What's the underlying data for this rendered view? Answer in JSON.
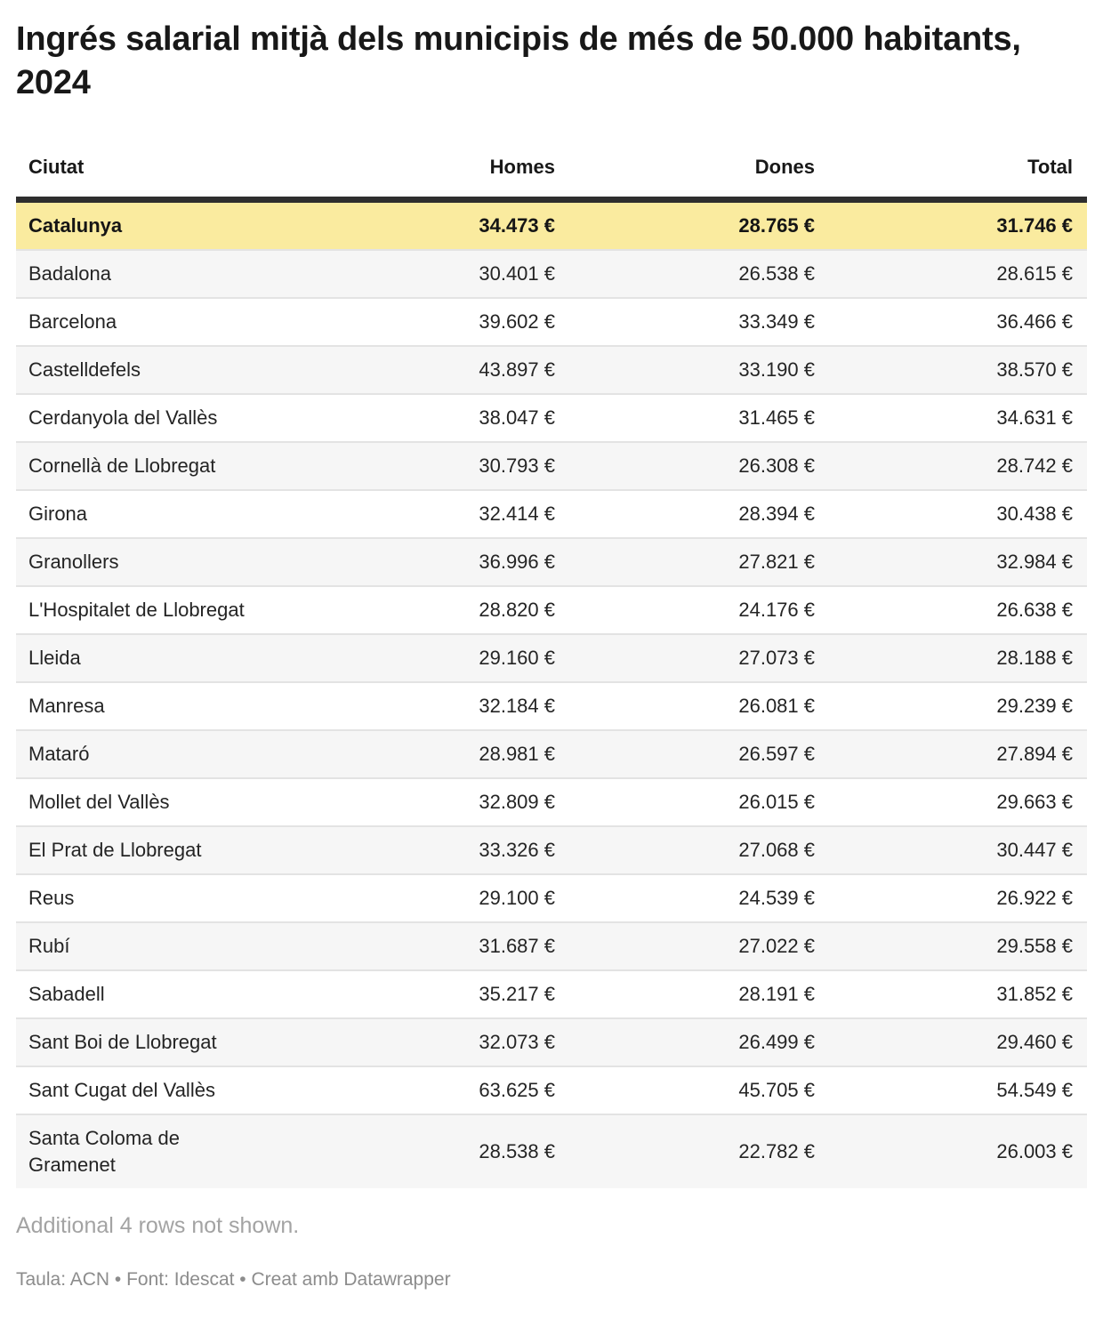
{
  "chart_data": {
    "type": "table",
    "title": "Ingrés salarial mitjà dels municipis de més de 50.000 habitants, 2024",
    "columns": [
      "Ciutat",
      "Homes",
      "Dones",
      "Total"
    ],
    "unit": "€",
    "highlighted_row": "Catalunya",
    "rows": [
      [
        "Catalunya",
        "34.473 €",
        "28.765 €",
        "31.746 €"
      ],
      [
        "Badalona",
        "30.401 €",
        "26.538 €",
        "28.615 €"
      ],
      [
        "Barcelona",
        "39.602 €",
        "33.349 €",
        "36.466 €"
      ],
      [
        "Castelldefels",
        "43.897 €",
        "33.190 €",
        "38.570 €"
      ],
      [
        "Cerdanyola del Vallès",
        "38.047 €",
        "31.465 €",
        "34.631 €"
      ],
      [
        "Cornellà de Llobregat",
        "30.793 €",
        "26.308 €",
        "28.742 €"
      ],
      [
        "Girona",
        "32.414 €",
        "28.394 €",
        "30.438 €"
      ],
      [
        "Granollers",
        "36.996 €",
        "27.821 €",
        "32.984 €"
      ],
      [
        "L'Hospitalet de Llobregat",
        "28.820 €",
        "24.176 €",
        "26.638 €"
      ],
      [
        "Lleida",
        "29.160 €",
        "27.073 €",
        "28.188 €"
      ],
      [
        "Manresa",
        "32.184 €",
        "26.081 €",
        "29.239 €"
      ],
      [
        "Mataró",
        "28.981 €",
        "26.597 €",
        "27.894 €"
      ],
      [
        "Mollet del Vallès",
        "32.809 €",
        "26.015 €",
        "29.663 €"
      ],
      [
        "El Prat de Llobregat",
        "33.326 €",
        "27.068 €",
        "30.447 €"
      ],
      [
        "Reus",
        "29.100 €",
        "24.539 €",
        "26.922 €"
      ],
      [
        "Rubí",
        "31.687 €",
        "27.022 €",
        "29.558 €"
      ],
      [
        "Sabadell",
        "35.217 €",
        "28.191 €",
        "31.852 €"
      ],
      [
        "Sant Boi de Llobregat",
        "32.073 €",
        "26.499 €",
        "29.460 €"
      ],
      [
        "Sant Cugat del Vallès",
        "63.625 €",
        "45.705 €",
        "54.549 €"
      ],
      [
        "Santa Coloma de Gramenet",
        "28.538 €",
        "22.782 €",
        "26.003 €"
      ]
    ]
  },
  "note": "Additional 4 rows not shown.",
  "footer": "Taula: ACN • Font: Idescat • Creat amb Datawrapper",
  "colors": {
    "highlight_bg": "#faeb9f",
    "stripe_bg": "#f6f6f6",
    "row_border": "#e3e3e3",
    "header_border": "#2e2e2e"
  }
}
